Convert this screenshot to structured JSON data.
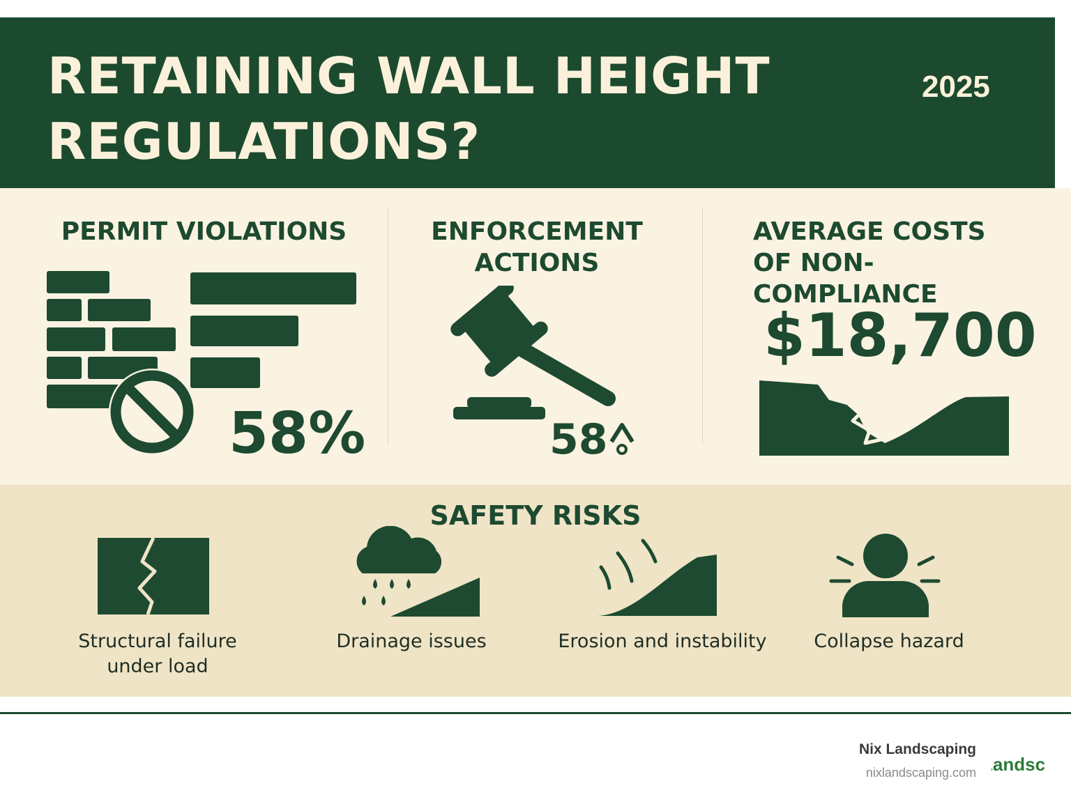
{
  "header": {
    "title": "RETAINING WALL HEIGHT REGULATIONS?",
    "year": "2025"
  },
  "stats": [
    {
      "title": "PERMIT VIOLATIONS",
      "value": "58%",
      "icon": "brick-wall-prohibited-icon"
    },
    {
      "title": "ENFORCEMENT ACTIONS",
      "value": "58",
      "icon": "gavel-icon"
    },
    {
      "title": "AVERAGE COSTS OF NON-COMPLIANCE",
      "value": "$18,700",
      "icon": "landslide-icon"
    }
  ],
  "safety": {
    "title": "SAFETY RISKS",
    "items": [
      {
        "label": "Structural failure under load",
        "icon": "cracked-wall-icon"
      },
      {
        "label": "Drainage issues",
        "icon": "rain-cloud-slope-icon"
      },
      {
        "label": "Erosion and instability",
        "icon": "eroding-slope-icon"
      },
      {
        "label": "Collapse hazard",
        "icon": "person-alert-icon"
      }
    ]
  },
  "footer": {
    "company": "Nix Landscaping",
    "url": "nixlandscaping.com",
    "logo_text": "Landsc"
  },
  "colors": {
    "primary_green": "#1c4a2f",
    "cream": "#fbf3e2",
    "tan": "#f0e4c6",
    "banner_text": "#fbf1da"
  }
}
